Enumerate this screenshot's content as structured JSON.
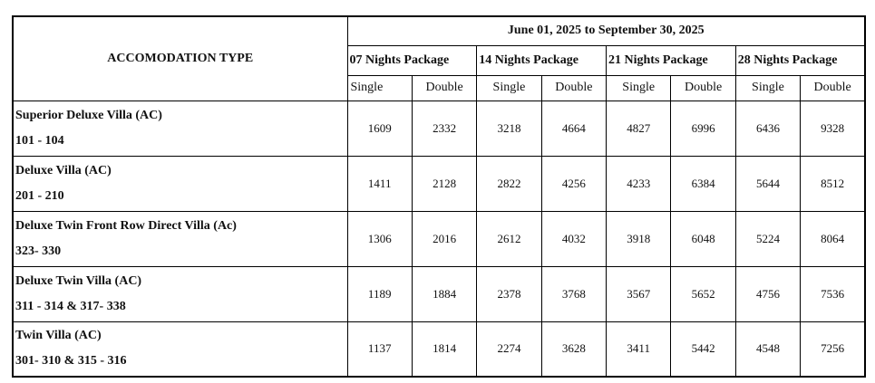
{
  "header": {
    "accommodation_label": "ACCOMODATION TYPE",
    "period": "June 01, 2025 to September 30, 2025",
    "packages": [
      {
        "name": "07 Nights Package",
        "columns": [
          "Single",
          "Double"
        ]
      },
      {
        "name": "14 Nights Package",
        "columns": [
          "Single",
          "Double"
        ]
      },
      {
        "name": "21 Nights Package",
        "columns": [
          "Single",
          "Double"
        ]
      },
      {
        "name": "28 Nights Package",
        "columns": [
          "Single",
          "Double"
        ]
      }
    ]
  },
  "table": {
    "rows": [
      {
        "name": "Superior Deluxe Villa (AC)",
        "rooms": "101 - 104",
        "values": [
          1609,
          2332,
          3218,
          4664,
          4827,
          6996,
          6436,
          9328
        ]
      },
      {
        "name": "Deluxe Villa (AC)",
        "rooms": "201 - 210",
        "values": [
          1411,
          2128,
          2822,
          4256,
          4233,
          6384,
          5644,
          8512
        ]
      },
      {
        "name": "Deluxe Twin Front Row Direct Villa (Ac)",
        "rooms": "323- 330",
        "values": [
          1306,
          2016,
          2612,
          4032,
          3918,
          6048,
          5224,
          8064
        ]
      },
      {
        "name": "Deluxe Twin Villa (AC)",
        "rooms": "311 - 314 & 317- 338",
        "values": [
          1189,
          1884,
          2378,
          3768,
          3567,
          5652,
          4756,
          7536
        ]
      },
      {
        "name": "Twin Villa (AC)",
        "rooms": "301- 310 & 315 - 316",
        "values": [
          1137,
          1814,
          2274,
          3628,
          3411,
          5442,
          4548,
          7256
        ]
      }
    ]
  }
}
